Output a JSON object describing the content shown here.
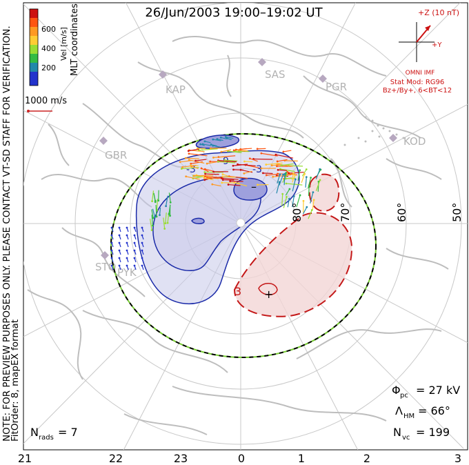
{
  "title": "26/Jun/2003 19:00–19:02 UT",
  "side_note": "NOTE: FOR PREVIEW PURPOSES ONLY. PLEASE CONTACT VT-SD STAFF FOR VERIFICATION.",
  "fit_order": "FitOrder: 8, mapEX format",
  "coord_label": "MLT coordinates",
  "colorbar": {
    "label": "Vel [m/s]",
    "ticks": [
      "600",
      "400",
      "200"
    ],
    "colors": [
      "#cc1111",
      "#ff5511",
      "#ff9922",
      "#ffcc33",
      "#99dd33",
      "#33bb44",
      "#2288aa",
      "#2233cc"
    ]
  },
  "scale_vector": {
    "label": "1000 m/s",
    "color": "#cc2222"
  },
  "imf": {
    "z_label": "+Z (10 nT)",
    "y_label": "+Y",
    "source": "OMNI IMF",
    "stat_mod": "Stat Mod: RG96",
    "condition": "Bz+/By+, 6<BT<12",
    "color": "#cc1111"
  },
  "stations": [
    "KAP",
    "SAS",
    "PGR",
    "KOD",
    "GBR",
    "STO",
    "PYK"
  ],
  "lat_labels": [
    "80°",
    "70°",
    "60°",
    "50°"
  ],
  "mlt_labels": [
    "21",
    "22",
    "23",
    "0",
    "1",
    "2",
    "3"
  ],
  "contour_marks": [
    "–",
    "+",
    "-3",
    "-9",
    "-3",
    "3"
  ],
  "stats": {
    "phi_pc": {
      "sym": "Φ",
      "sub": "pc",
      "value": "= 27 kV"
    },
    "lambda_hm": {
      "sym": "Λ",
      "sub": "HM",
      "value": "= 66°"
    },
    "n_vc": {
      "sym": "N",
      "sub": "vc",
      "value": "= 199"
    },
    "n_rads": {
      "sym": "N",
      "sub": "rads",
      "value": "= 7"
    }
  }
}
